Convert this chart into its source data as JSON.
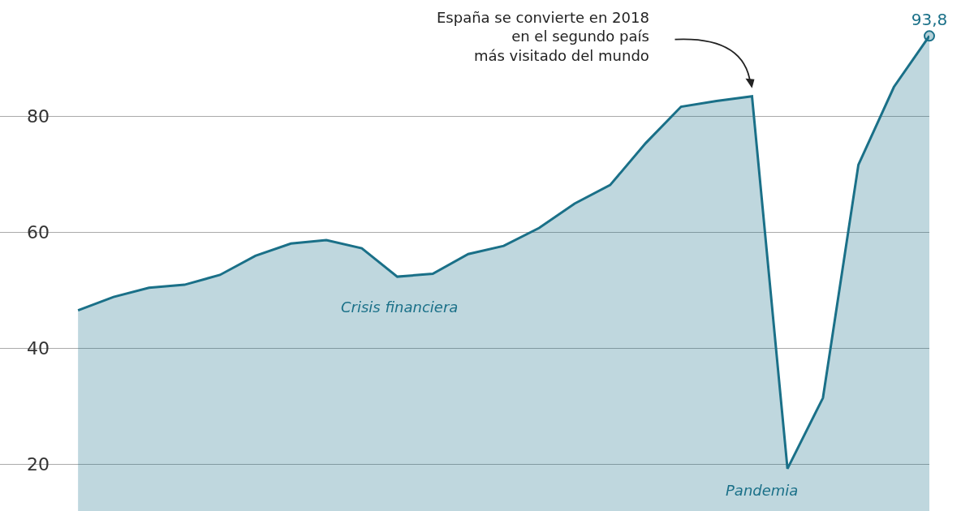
{
  "chart_data": {
    "type": "area",
    "categories": [
      null,
      null,
      null,
      null,
      null,
      null,
      null,
      null,
      null,
      null,
      null,
      null,
      null,
      null,
      null,
      null,
      null,
      null,
      null,
      null,
      null,
      null,
      null,
      null,
      null
    ],
    "series": [
      {
        "color": "#1a7088",
        "values": [
          46.5,
          48.8,
          50.4,
          50.9,
          52.6,
          55.9,
          58.0,
          58.6,
          57.2,
          52.3,
          52.8,
          56.2,
          57.6,
          60.7,
          64.9,
          68.1,
          75.3,
          81.6,
          82.6,
          83.4,
          19.2,
          31.4,
          71.6,
          85.0,
          93.8
        ],
        "value_labels": [
          null,
          null,
          null,
          null,
          null,
          null,
          null,
          null,
          null,
          null,
          null,
          null,
          null,
          null,
          null,
          null,
          null,
          null,
          null,
          null,
          null,
          null,
          null,
          null,
          "93,8"
        ]
      }
    ],
    "ylim": [
      11.9,
      100
    ],
    "yticks": [
      20,
      40,
      60,
      80
    ],
    "grid": "y",
    "annotations": [
      "España se convierte en 2018 en el segundo país más visitado del mundo",
      "Crisis financiera",
      "Pandemia"
    ]
  }
}
